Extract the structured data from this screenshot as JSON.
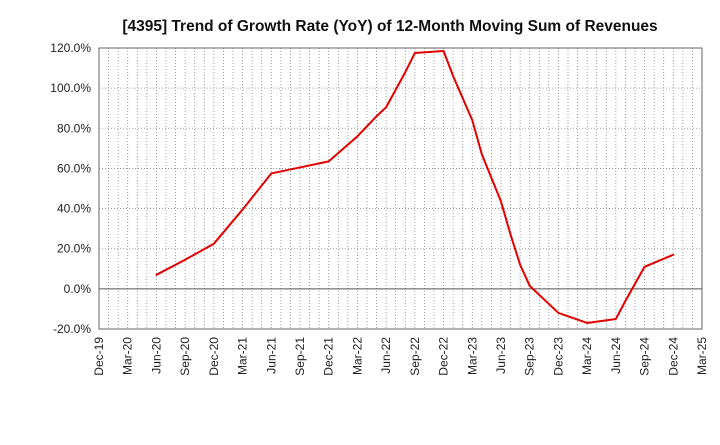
{
  "colors": {
    "line": "#e30000",
    "grid": "#888888",
    "axis": "#666666",
    "zero_line": "#555555",
    "background": "#ffffff"
  },
  "chart_data": {
    "type": "line",
    "title": "[4395]  Trend of Growth Rate (YoY) of 12-Month Moving Sum of Revenues",
    "xlabel": "",
    "ylabel": "",
    "categories": [
      "Dec-19",
      "Mar-20",
      "Jun-20",
      "Sep-20",
      "Dec-20",
      "Mar-21",
      "Jun-21",
      "Sep-21",
      "Dec-21",
      "Mar-22",
      "Jun-22",
      "Sep-22",
      "Dec-22",
      "Mar-23",
      "Jun-23",
      "Sep-23",
      "Dec-23",
      "Mar-24",
      "Jun-24",
      "Sep-24",
      "Dec-24",
      "Mar-25"
    ],
    "x_tick_labels": [
      "Dec-19",
      "Mar-20",
      "Jun-20",
      "Sep-20",
      "Dec-20",
      "Mar-21",
      "Jun-21",
      "Sep-21",
      "Dec-21",
      "Mar-22",
      "Jun-22",
      "Sep-22",
      "Dec-22",
      "Mar-23",
      "Jun-23",
      "Sep-23",
      "Dec-23",
      "Mar-24",
      "Jun-24",
      "Sep-24",
      "Dec-24",
      "Mar-25"
    ],
    "y_ticks": [
      120,
      100,
      80,
      60,
      40,
      20,
      0,
      -20
    ],
    "y_tick_labels": [
      "120.0%",
      "100.0%",
      "80.0%",
      "60.0%",
      "40.0%",
      "20.0%",
      "0.0%",
      "-20.0%"
    ],
    "ylim": [
      -20,
      120
    ],
    "grid": true,
    "minor_x_per_major": 3,
    "series": [
      {
        "name": "",
        "points": [
          {
            "x": 2.0,
            "y": 7.0
          },
          {
            "x": 3.0,
            "y": 14.5
          },
          {
            "x": 4.0,
            "y": 22.5
          },
          {
            "x": 5.0,
            "y": 39.5
          },
          {
            "x": 6.0,
            "y": 57.5
          },
          {
            "x": 7.0,
            "y": 60.5
          },
          {
            "x": 8.0,
            "y": 63.5
          },
          {
            "x": 9.0,
            "y": 76.0
          },
          {
            "x": 9.667,
            "y": 86.0
          },
          {
            "x": 10.0,
            "y": 90.5
          },
          {
            "x": 10.667,
            "y": 108.0
          },
          {
            "x": 11.0,
            "y": 117.5
          },
          {
            "x": 12.0,
            "y": 118.5
          },
          {
            "x": 12.333,
            "y": 106.0
          },
          {
            "x": 13.0,
            "y": 84.0
          },
          {
            "x": 13.333,
            "y": 67.0
          },
          {
            "x": 14.0,
            "y": 43.5
          },
          {
            "x": 14.333,
            "y": 27.0
          },
          {
            "x": 14.667,
            "y": 12.0
          },
          {
            "x": 15.0,
            "y": 1.5
          },
          {
            "x": 16.0,
            "y": -12.0
          },
          {
            "x": 17.0,
            "y": -17.0
          },
          {
            "x": 18.0,
            "y": -15.0
          },
          {
            "x": 18.333,
            "y": -6.0
          },
          {
            "x": 19.0,
            "y": 11.0
          },
          {
            "x": 20.0,
            "y": 17.0
          }
        ]
      }
    ]
  }
}
